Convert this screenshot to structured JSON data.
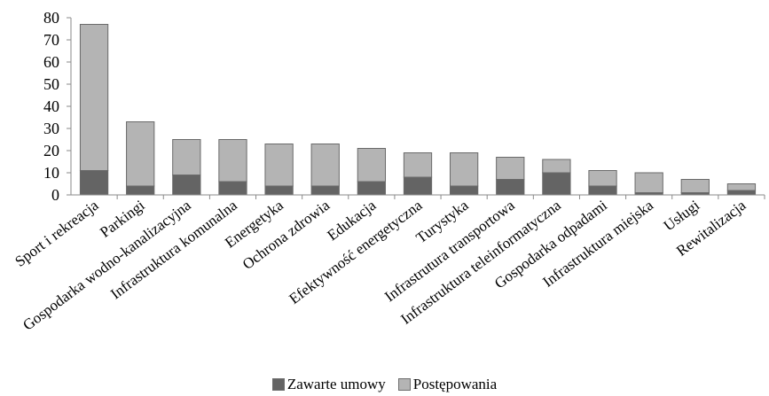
{
  "chart_data": {
    "type": "bar",
    "stacked": true,
    "title": "",
    "xlabel": "",
    "ylabel": "",
    "ylim": [
      0,
      80
    ],
    "yticks": [
      0,
      10,
      20,
      30,
      40,
      50,
      60,
      70,
      80
    ],
    "grid": false,
    "legend_position": "bottom",
    "categories": [
      "Sport i rekreacja",
      "Parkingi",
      "Gospodarka wodno-kanalizacyjna",
      "Infrastruktura komunalna",
      "Energetyka",
      "Ochrona zdrowia",
      "Edukacja",
      "Efektywność energetyczna",
      "Turystyka",
      "Infrastrutura transportowa",
      "Infrastruktura teleinformatyczna",
      "Gospodarka odpadami",
      "Infrastruktura miejska",
      "Usługi",
      "Rewitalizacja"
    ],
    "series": [
      {
        "name": "Zawarte umowy",
        "color": "#646464",
        "values": [
          11,
          4,
          9,
          6,
          4,
          4,
          6,
          8,
          4,
          7,
          10,
          4,
          1,
          1,
          2
        ]
      },
      {
        "name": "Postępowania",
        "color": "#b4b4b4",
        "values": [
          66,
          29,
          16,
          19,
          19,
          19,
          15,
          11,
          15,
          10,
          6,
          7,
          9,
          6,
          3
        ]
      }
    ]
  }
}
